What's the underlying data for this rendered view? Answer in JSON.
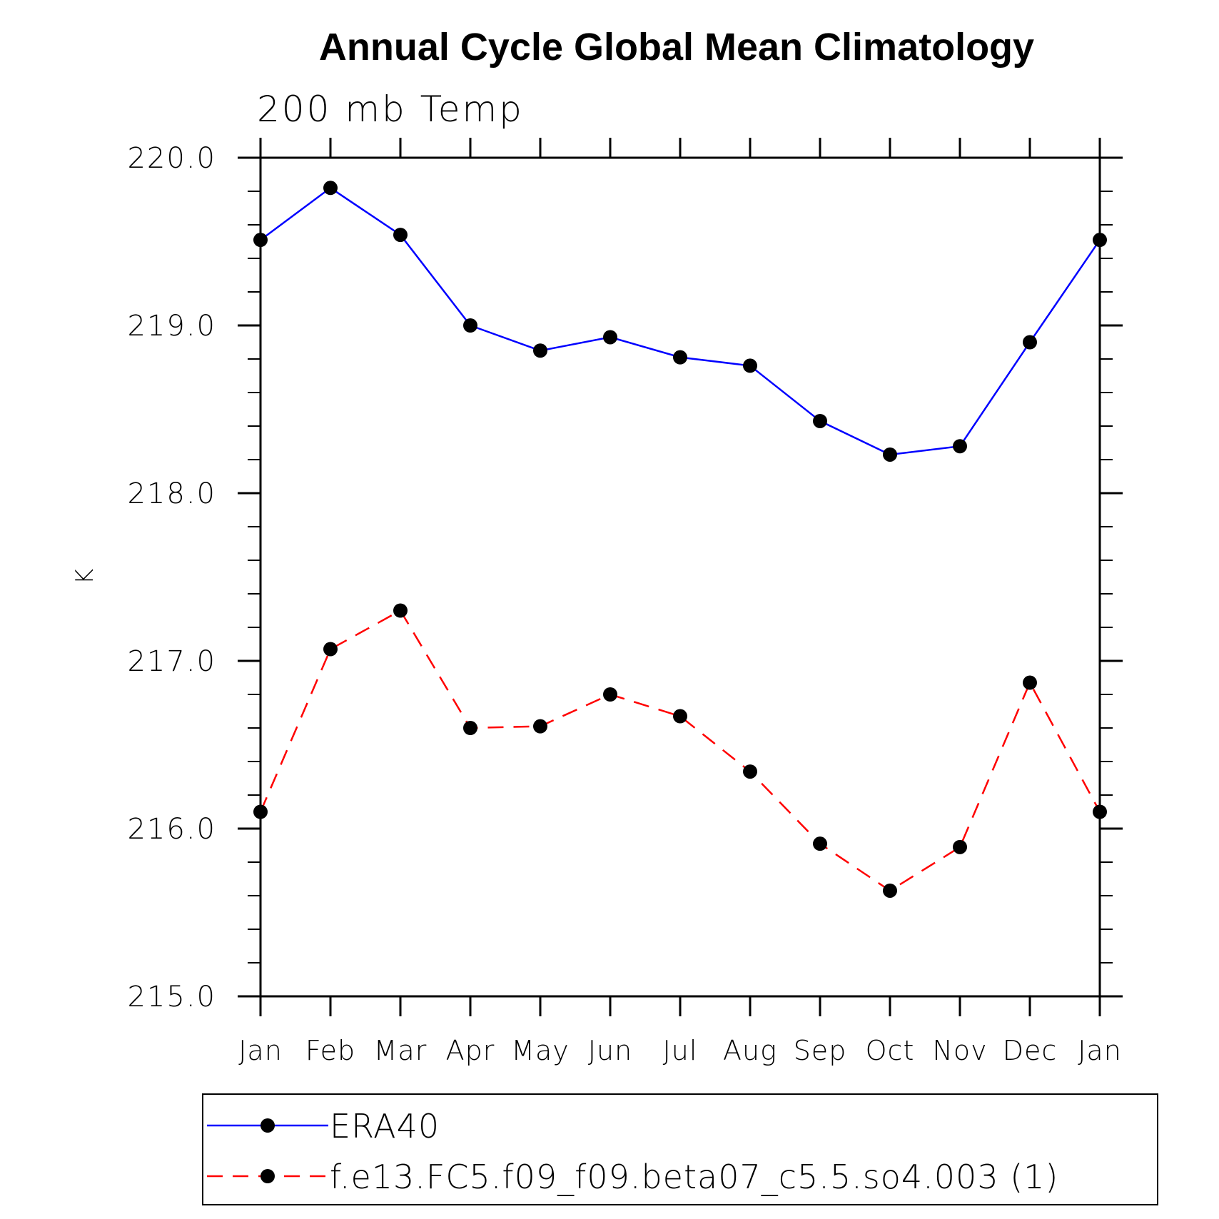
{
  "chart_data": {
    "type": "line",
    "title": "Annual Cycle Global Mean Climatology",
    "subtitle": "200 mb Temp",
    "xlabel": "",
    "ylabel": "K",
    "categories": [
      "Jan",
      "Feb",
      "Mar",
      "Apr",
      "May",
      "Jun",
      "Jul",
      "Aug",
      "Sep",
      "Oct",
      "Nov",
      "Dec",
      "Jan"
    ],
    "ylim": [
      215.0,
      220.0
    ],
    "yticks": [
      "215.0",
      "216.0",
      "217.0",
      "218.0",
      "219.0",
      "220.0"
    ],
    "series": [
      {
        "name": "ERA40",
        "color": "#0000ff",
        "dash": "solid",
        "marker": "filled-circle",
        "values": [
          219.51,
          219.82,
          219.54,
          219.0,
          218.85,
          218.93,
          218.81,
          218.76,
          218.43,
          218.23,
          218.28,
          218.9,
          219.51
        ]
      },
      {
        "name": "f.e13.FC5.f09_f09.beta07_c5.5.so4.003 (1)",
        "color": "#ff0000",
        "dash": "dashed",
        "marker": "filled-circle",
        "values": [
          216.1,
          217.07,
          217.3,
          216.6,
          216.61,
          216.8,
          216.67,
          216.34,
          215.91,
          215.63,
          215.89,
          216.87,
          216.1
        ]
      }
    ],
    "legend_position": "bottom"
  }
}
